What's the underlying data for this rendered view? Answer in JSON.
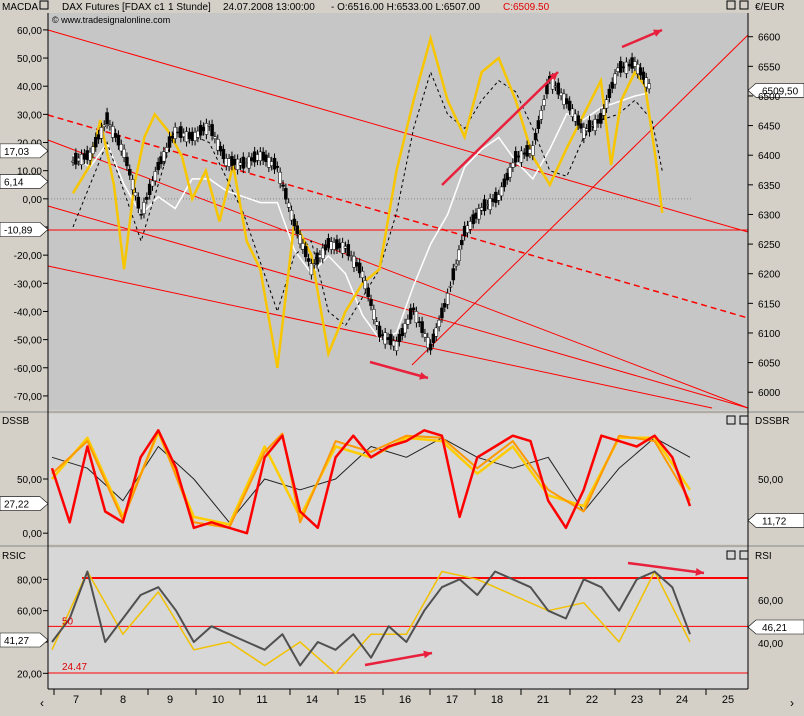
{
  "header": {
    "left_axis_label": "MACDA",
    "instrument": "DAX Futures [FDAX c1",
    "interval": "1 Stunde]",
    "datetime": "24.07.2008 13:00:00",
    "ohlc": "- O:6516.00 H:6533.00 L:6507.00",
    "close": "C:6509.50",
    "copyright": "© www.tradesignalonline.com",
    "right_axis_label": "€/EUR"
  },
  "colors": {
    "price_pane_bg": "#c6c6c6",
    "panel_bg": "#d7d7d7",
    "close_text": "#e00000",
    "trendline": "#ff0000",
    "arrow": "#e8203c",
    "macd_yellow": "#f7c600",
    "stoch_red": "#ff0000",
    "stoch_orange": "#ff9900",
    "stoch_yellow": "#ffcc00",
    "rsi_dark": "#505050",
    "rsi_yellow": "#f2c100"
  },
  "chart_data": [
    {
      "type": "line",
      "pane": "price",
      "y_label_left": "MACDA",
      "y_label_right": "€/EUR",
      "ylim_right": [
        5970,
        6640
      ],
      "ylim_left": [
        -75,
        66
      ],
      "right_ticks": [
        6600,
        6550,
        6500,
        6450,
        6400,
        6350,
        6300,
        6250,
        6200,
        6150,
        6100,
        6050,
        6000
      ],
      "left_ticks": [
        "60,00",
        "50,00",
        "40,00",
        "30,00",
        "20,00",
        "10,00",
        "0,00",
        "-10,00",
        "-20,00",
        "-30,00",
        "-40,00",
        "-50,00",
        "-60,00",
        "-70,00"
      ],
      "left_ticks_v": [
        60,
        50,
        40,
        30,
        20,
        10,
        0,
        -10,
        -20,
        -30,
        -40,
        -50,
        -60,
        -70
      ],
      "left_badges": [
        {
          "text": "17,03",
          "v": 17.03
        },
        {
          "text": "6,14",
          "v": 6.14
        },
        {
          "text": "-10,89",
          "v": -10.89
        }
      ],
      "last_price_label": "6509,50",
      "last_price": 6509.5,
      "series": [
        {
          "role": "price",
          "x": [
            0.5,
            1.0,
            1.5,
            2.0,
            2.5,
            3.0,
            3.5,
            4.0,
            4.5,
            5.0,
            5.5,
            6.0,
            6.5,
            7.0,
            7.5,
            8.0,
            8.5,
            9.0,
            9.5,
            10.0,
            10.5,
            11.0,
            11.5,
            12.0,
            12.5,
            13.0,
            13.5,
            14.0,
            14.5,
            15.0,
            15.5,
            16.0,
            16.5,
            17.0,
            17.5
          ],
          "values": [
            6390,
            6400,
            6460,
            6405,
            6300,
            6380,
            6440,
            6430,
            6450,
            6390,
            6385,
            6400,
            6380,
            6285,
            6210,
            6250,
            6245,
            6200,
            6100,
            6080,
            6140,
            6075,
            6160,
            6270,
            6310,
            6330,
            6395,
            6410,
            6530,
            6490,
            6440,
            6460,
            6545,
            6555,
            6510
          ]
        },
        {
          "role": "macd",
          "x": [
            0.5,
            1.0,
            1.3,
            1.7,
            2.0,
            2.3,
            2.6,
            2.9,
            3.3,
            3.7,
            4.0,
            4.4,
            4.8,
            5.2,
            5.6,
            6.0,
            6.5,
            7.0,
            7.5,
            8.0,
            8.5,
            9.0,
            9.5,
            10.0,
            10.5,
            11.0,
            11.5,
            12.0,
            12.5,
            13.0,
            13.5,
            14.0,
            14.5,
            15.0,
            15.5,
            16.0,
            16.3,
            16.6,
            17.0,
            17.3,
            17.6,
            17.8
          ],
          "values": [
            2,
            12,
            28,
            5,
            -25,
            5,
            22,
            30,
            24,
            15,
            0,
            10,
            -8,
            12,
            -15,
            -25,
            -60,
            -8,
            -20,
            -55,
            -40,
            -30,
            -25,
            10,
            35,
            57,
            35,
            22,
            45,
            50,
            35,
            15,
            5,
            18,
            30,
            42,
            12,
            35,
            45,
            40,
            15,
            -5
          ]
        },
        {
          "role": "signal",
          "x": [
            0.5,
            1.5,
            2.5,
            3.5,
            4.5,
            5.5,
            6.5,
            7.0,
            7.5,
            8.0,
            8.5,
            9.0,
            9.5,
            10.0,
            10.5,
            11.0,
            11.5,
            12.0,
            12.5,
            13.0,
            13.5,
            14.0,
            14.5,
            15.0,
            15.5,
            16.0,
            16.5,
            17.0,
            17.5,
            17.8
          ],
          "values": [
            -10,
            20,
            -15,
            25,
            20,
            -5,
            -40,
            -20,
            -15,
            -40,
            -45,
            -35,
            -25,
            -5,
            25,
            45,
            30,
            25,
            35,
            42,
            38,
            25,
            10,
            8,
            22,
            28,
            30,
            35,
            28,
            10
          ]
        },
        {
          "role": "white",
          "x": [
            0.5,
            1.0,
            1.5,
            2.0,
            2.5,
            3.0,
            3.5,
            4.0,
            4.5,
            5.0,
            5.5,
            6.0,
            6.5,
            7.0,
            7.5,
            8.0,
            8.5,
            9.0,
            9.5,
            10.0,
            10.5,
            11.0,
            11.5,
            12.0,
            12.5,
            13.0,
            13.5,
            14.0,
            14.5,
            15.0,
            15.5,
            16.0,
            16.5,
            17.0,
            17.4
          ],
          "values": [
            6400,
            6380,
            6420,
            6350,
            6300,
            6330,
            6310,
            6360,
            6360,
            6340,
            6330,
            6320,
            6320,
            6240,
            6200,
            6230,
            6200,
            6130,
            6090,
            6100,
            6180,
            6250,
            6300,
            6380,
            6410,
            6430,
            6390,
            6360,
            6410,
            6470,
            6460,
            6480,
            6490,
            6500,
            6505
          ]
        }
      ]
    },
    {
      "type": "line",
      "pane": "stoch",
      "y_label_left": "DSSB",
      "y_label_right": "DSSBR",
      "ylim": [
        -10,
        110
      ],
      "left_ticks": [
        "50,00",
        "0,00"
      ],
      "left_ticks_v": [
        50,
        0
      ],
      "right_ticks": [
        50
      ],
      "right_ticks_label": [
        "50,00"
      ],
      "left_badge": {
        "text": "27,22",
        "v": 27.22
      },
      "right_badge": {
        "text": "11,72",
        "v": 11.72
      },
      "series": [
        {
          "role": "red",
          "x": [
            0.0,
            0.5,
            1.0,
            1.5,
            2.0,
            2.5,
            3.0,
            3.5,
            4.0,
            4.5,
            5.0,
            5.5,
            6.0,
            6.5,
            7.0,
            7.5,
            8.0,
            8.5,
            9.0,
            9.5,
            10.0,
            10.5,
            11.0,
            11.5,
            12.0,
            12.5,
            13.0,
            13.5,
            14.0,
            14.5,
            15.0,
            15.5,
            16.0,
            16.5,
            17.0,
            17.5,
            18.0
          ],
          "values": [
            60,
            10,
            80,
            20,
            10,
            70,
            95,
            60,
            5,
            10,
            5,
            0,
            70,
            90,
            20,
            5,
            70,
            90,
            70,
            80,
            85,
            95,
            90,
            15,
            70,
            80,
            90,
            85,
            30,
            5,
            40,
            90,
            85,
            80,
            90,
            70,
            25
          ]
        },
        {
          "role": "orange",
          "x": [
            0.0,
            1.0,
            2.0,
            3.0,
            4.0,
            5.0,
            6.0,
            6.5,
            7.0,
            8.0,
            9.0,
            10.0,
            11.0,
            12.0,
            13.0,
            14.0,
            15.0,
            16.0,
            17.0,
            18.0
          ],
          "values": [
            55,
            85,
            12,
            95,
            10,
            5,
            75,
            92,
            10,
            85,
            75,
            90,
            88,
            60,
            85,
            40,
            20,
            90,
            85,
            30
          ]
        },
        {
          "role": "yellow",
          "x": [
            0.0,
            1.0,
            2.0,
            3.0,
            4.0,
            5.0,
            6.0,
            7.0,
            8.0,
            9.0,
            10.0,
            11.0,
            12.0,
            13.0,
            14.0,
            15.0,
            16.0,
            17.0,
            18.0
          ],
          "values": [
            50,
            88,
            15,
            93,
            15,
            8,
            80,
            15,
            80,
            70,
            88,
            85,
            55,
            80,
            35,
            25,
            88,
            88,
            40
          ]
        },
        {
          "role": "black",
          "x": [
            0.0,
            1.0,
            2.0,
            3.0,
            4.0,
            5.0,
            6.0,
            7.0,
            8.0,
            9.0,
            10.0,
            11.0,
            12.0,
            13.0,
            14.0,
            15.0,
            16.0,
            17.0,
            18.0
          ],
          "values": [
            70,
            60,
            30,
            80,
            50,
            10,
            50,
            40,
            50,
            80,
            70,
            88,
            70,
            60,
            70,
            20,
            60,
            88,
            70
          ]
        }
      ]
    },
    {
      "type": "line",
      "pane": "rsi",
      "y_label_left": "RSIC",
      "y_label_right": "RSI",
      "ylim_left": [
        10,
        100
      ],
      "left_ticks": [
        "80,00",
        "60,00",
        "40,00",
        "20,00"
      ],
      "left_ticks_v": [
        80,
        60,
        40,
        20
      ],
      "right_ticks": [
        60,
        40
      ],
      "right_ticks_label": [
        "60,00",
        "40,00"
      ],
      "left_badge": {
        "text": "41,27",
        "v": 41.27
      },
      "right_badge": {
        "text": "46,21",
        "v": 46.21
      },
      "annotations": [
        {
          "text": "50",
          "v": 50
        },
        {
          "text": "24.47",
          "v": 24.47
        }
      ],
      "series": [
        {
          "role": "dark",
          "x": [
            0.0,
            0.5,
            1.0,
            1.5,
            2.0,
            2.5,
            3.0,
            3.5,
            4.0,
            4.5,
            5.0,
            5.5,
            6.0,
            6.5,
            7.0,
            7.5,
            8.0,
            8.5,
            9.0,
            9.5,
            10.0,
            10.5,
            11.0,
            11.5,
            12.0,
            12.5,
            13.0,
            13.5,
            14.0,
            14.5,
            15.0,
            15.5,
            16.0,
            16.5,
            17.0,
            17.5,
            18.0
          ],
          "values": [
            40,
            55,
            85,
            40,
            55,
            70,
            75,
            60,
            40,
            50,
            45,
            40,
            35,
            45,
            25,
            40,
            35,
            45,
            30,
            50,
            40,
            60,
            75,
            80,
            70,
            85,
            80,
            75,
            60,
            55,
            80,
            75,
            60,
            80,
            85,
            75,
            45
          ]
        },
        {
          "role": "yellow",
          "x": [
            0.0,
            1.0,
            2.0,
            3.0,
            4.0,
            5.0,
            6.0,
            7.0,
            8.0,
            9.0,
            10.0,
            11.0,
            12.0,
            13.0,
            14.0,
            15.0,
            16.0,
            17.0,
            18.0
          ],
          "values": [
            35,
            85,
            45,
            72,
            35,
            40,
            25,
            40,
            20,
            45,
            45,
            85,
            80,
            70,
            60,
            65,
            40,
            85,
            40
          ]
        }
      ]
    },
    {
      "type": "axis",
      "pane": "x-axis",
      "tick_labels": [
        "7",
        "8",
        "9",
        "10",
        "11",
        "14",
        "15",
        "16",
        "17",
        "18",
        "21",
        "22",
        "23",
        "24",
        "25"
      ]
    }
  ]
}
